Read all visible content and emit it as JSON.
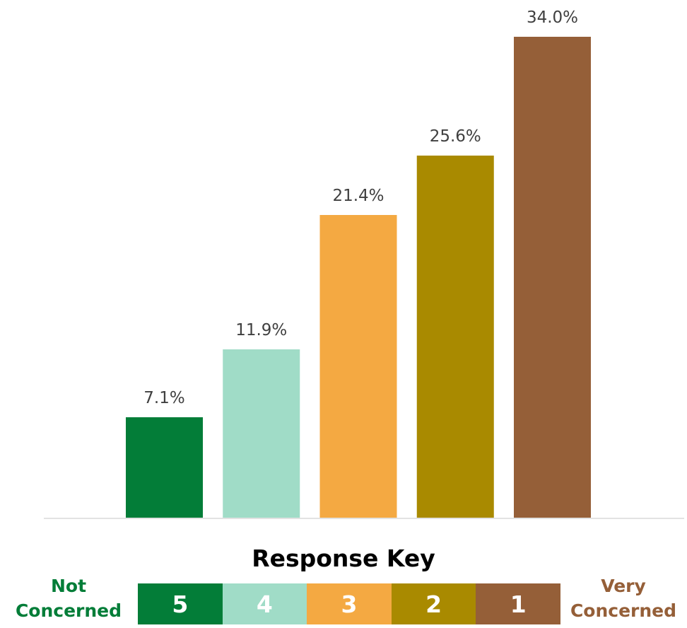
{
  "chart_data": {
    "type": "bar",
    "categories": [
      "5",
      "4",
      "3",
      "2",
      "1"
    ],
    "values": [
      7.1,
      11.9,
      21.4,
      25.6,
      34.0
    ],
    "labels": [
      "7.1%",
      "11.9%",
      "21.4%",
      "25.6%",
      "34.0%"
    ],
    "colors": [
      "#037d38",
      "#a0dcc7",
      "#f4a942",
      "#a98a00",
      "#955f38"
    ],
    "ylim": [
      0,
      34.0
    ],
    "grid": false,
    "title": "",
    "xlabel": "",
    "ylabel": ""
  },
  "response_key": {
    "title": "Response Key",
    "left_label": [
      "Not",
      "Concerned"
    ],
    "right_label": [
      "Very",
      "Concerned"
    ],
    "left_color": "#037d38",
    "right_color": "#955f38",
    "items": [
      {
        "label": "5",
        "color": "#037d38"
      },
      {
        "label": "4",
        "color": "#a0dcc7"
      },
      {
        "label": "3",
        "color": "#f4a942"
      },
      {
        "label": "2",
        "color": "#a98a00"
      },
      {
        "label": "1",
        "color": "#955f38"
      }
    ]
  }
}
